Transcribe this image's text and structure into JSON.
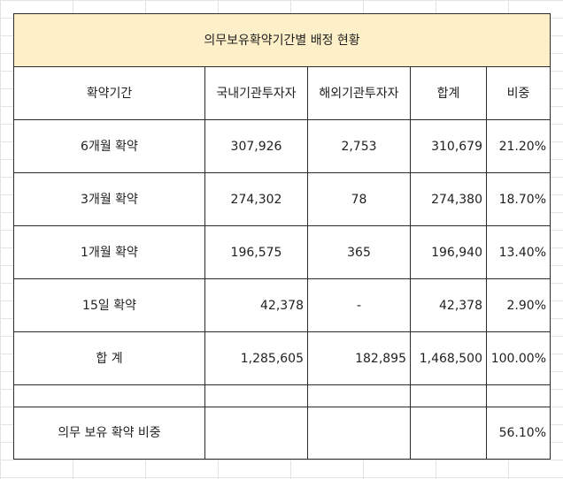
{
  "title": "의무보유확약기간별 배정 현황",
  "headers": [
    "확약기간",
    "국내기관투자자",
    "해외기관투자자",
    "합계",
    "비중"
  ],
  "rows": [
    {
      "period": "6개월 확약",
      "domestic": "307,926",
      "foreign": "2,753",
      "total": "310,679",
      "ratio": "21.20%"
    },
    {
      "period": "3개월 확약",
      "domestic": "274,302",
      "foreign": "78",
      "total": "274,380",
      "ratio": "18.70%"
    },
    {
      "period": "1개월 확약",
      "domestic": "196,575",
      "foreign": "365",
      "total": "196,940",
      "ratio": "13.40%"
    },
    {
      "period": "15일 확약",
      "domestic": "42,378",
      "foreign": "-",
      "total": "42,378",
      "ratio": "2.90%"
    }
  ],
  "sum_row": {
    "label": "합 계",
    "domestic": "1,285,605",
    "foreign": "182,895",
    "total": "1,468,500",
    "ratio": "100.00%"
  },
  "lockup_row": {
    "label": "의무 보유 확약 비중",
    "ratio": "56.10%"
  },
  "colors": {
    "title_fill": "#fdf0c8",
    "border": "#2b2b2b",
    "gridline": "#e3e3e3"
  }
}
